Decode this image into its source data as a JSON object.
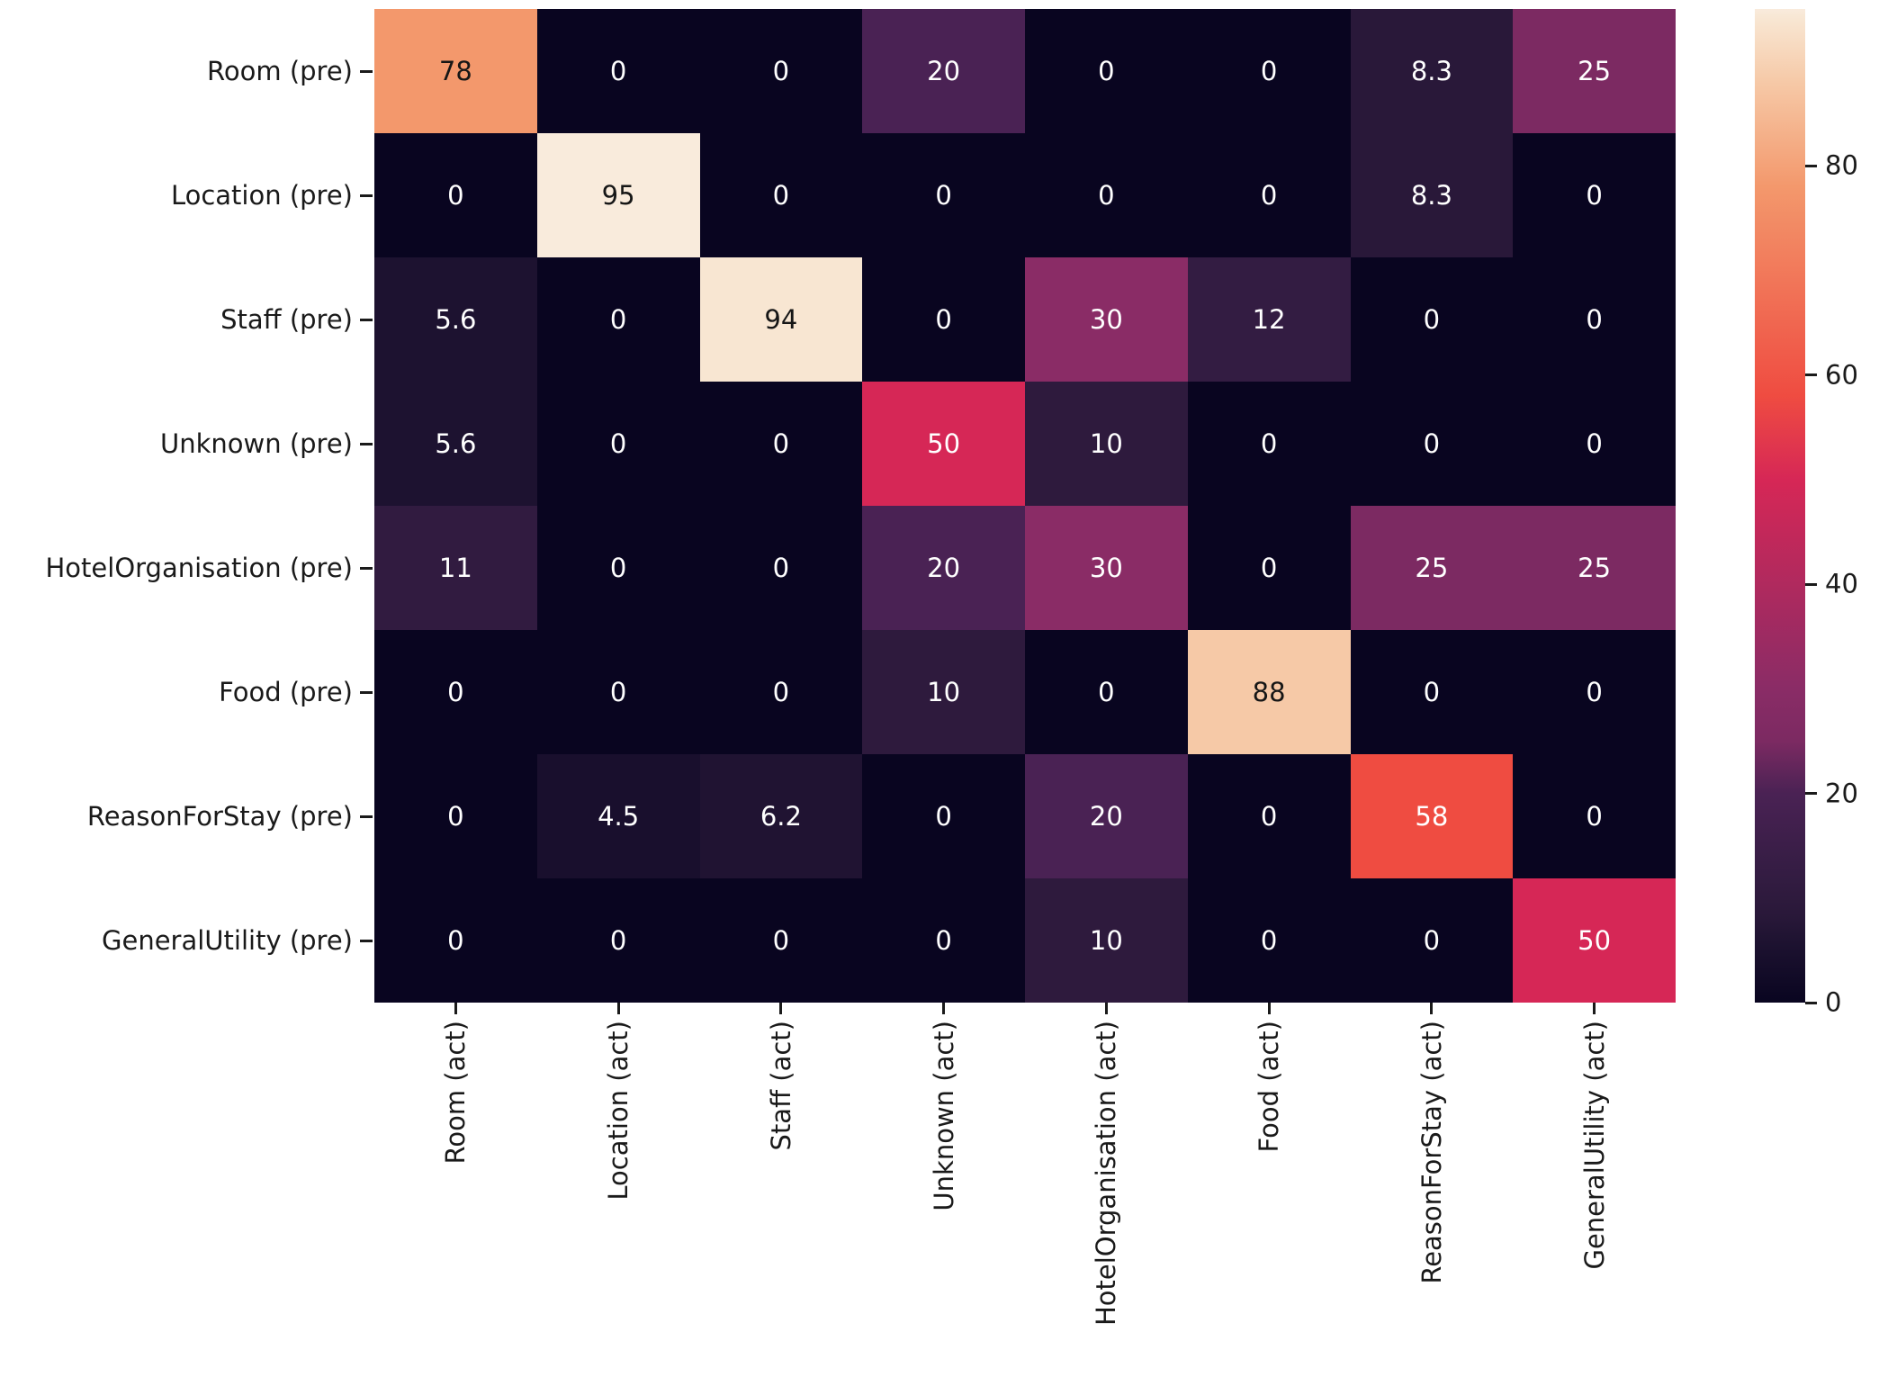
{
  "chart_data": {
    "type": "heatmap",
    "title": "",
    "colormap_name": "rocket",
    "rows": [
      "Room (pre)",
      "Location (pre)",
      "Staff (pre)",
      "Unknown (pre)",
      "HotelOrganisation (pre)",
      "Food (pre)",
      "ReasonForStay (pre)",
      "GeneralUtility (pre)"
    ],
    "columns": [
      "Room (act)",
      "Location (act)",
      "Staff (act)",
      "Unknown (act)",
      "HotelOrganisation (act)",
      "Food (act)",
      "ReasonForStay (act)",
      "GeneralUtility (act)"
    ],
    "values": [
      [
        78,
        0,
        0,
        20,
        0,
        0,
        8.3,
        25
      ],
      [
        0,
        95,
        0,
        0,
        0,
        0,
        8.3,
        0
      ],
      [
        5.6,
        0,
        94,
        0,
        30,
        12,
        0,
        0
      ],
      [
        5.6,
        0,
        0,
        50,
        10,
        0,
        0,
        0
      ],
      [
        11,
        0,
        0,
        20,
        30,
        0,
        25,
        25
      ],
      [
        0,
        0,
        0,
        10,
        0,
        88,
        0,
        0
      ],
      [
        0,
        4.5,
        6.2,
        0,
        20,
        0,
        58,
        0
      ],
      [
        0,
        0,
        0,
        0,
        10,
        0,
        0,
        50
      ]
    ],
    "vmin": 0,
    "vmax": 95,
    "annotations": true,
    "grid": false,
    "colorbar_position": "right",
    "colorbar_ticks": [
      0,
      20,
      40,
      60,
      80
    ],
    "colormap_stops": [
      [
        0,
        "#090520"
      ],
      [
        5.6,
        "#1D1230"
      ],
      [
        8.3,
        "#291839"
      ],
      [
        10,
        "#2E1A3D"
      ],
      [
        12,
        "#331C42"
      ],
      [
        20,
        "#4A2254"
      ],
      [
        25,
        "#7C2A62"
      ],
      [
        30,
        "#8A2C66"
      ],
      [
        50,
        "#D62756"
      ],
      [
        58,
        "#EF4C41"
      ],
      [
        78,
        "#F3986C"
      ],
      [
        88,
        "#F6C9A7"
      ],
      [
        94,
        "#F8E6D2"
      ],
      [
        95,
        "#F9EBDC"
      ]
    ],
    "annotation_text_dark": "#161616",
    "annotation_text_light": "#FFFFFF",
    "axis_text_color": "#1A1A1A",
    "background": "#FFFFFF"
  }
}
